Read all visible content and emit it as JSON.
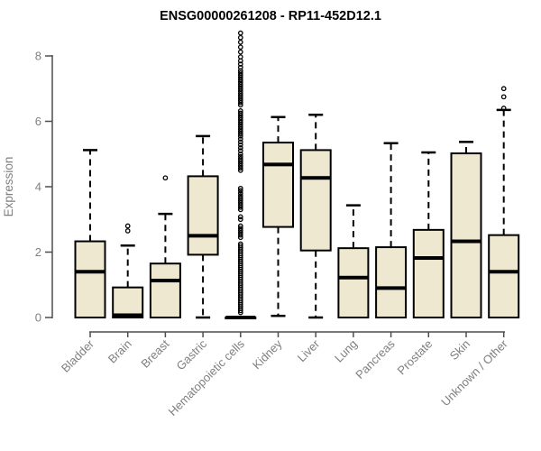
{
  "chart_data": {
    "type": "boxplot",
    "title": "ENSG00000261208 - RP11-452D12.1",
    "ylabel": "Expression",
    "xlabel": "",
    "ylim": [
      0,
      8
    ],
    "yticks": [
      0,
      2,
      4,
      6,
      8
    ],
    "grid": "off",
    "legend": "none",
    "box_fill": "#EDE8CF",
    "box_stroke": "#000000",
    "axis_color": "#4d4d4d",
    "label_color": "#7f7f7f",
    "title_color": "#000000",
    "categories": [
      "Bladder",
      "Brain",
      "Breast",
      "Gastric",
      "Hematopoietic cells",
      "Kidney",
      "Liver",
      "Lung",
      "Pancreas",
      "Prostate",
      "Skin",
      "Unknown / Other"
    ],
    "series": [
      {
        "name": "Bladder",
        "whislo": 0,
        "q1": 0,
        "med": 1.4,
        "q3": 2.33,
        "whishi": 5.12,
        "outliers": []
      },
      {
        "name": "Brain",
        "whislo": 0,
        "q1": 0,
        "med": 0.07,
        "q3": 0.92,
        "whishi": 2.2,
        "outliers": [
          2.65,
          2.8
        ]
      },
      {
        "name": "Breast",
        "whislo": 0,
        "q1": 0,
        "med": 1.13,
        "q3": 1.65,
        "whishi": 3.17,
        "outliers": [
          4.27
        ]
      },
      {
        "name": "Gastric",
        "whislo": 0,
        "q1": 1.92,
        "med": 2.5,
        "q3": 4.32,
        "whishi": 5.55,
        "outliers": []
      },
      {
        "name": "Hematopoietic cells",
        "whislo": 0,
        "q1": 0,
        "med": 0,
        "q3": 0,
        "whishi": 0,
        "outliers": [
          0.15,
          0.21,
          0.27,
          0.33,
          0.39,
          0.45,
          0.51,
          0.57,
          0.63,
          0.69,
          0.75,
          0.81,
          0.87,
          0.93,
          0.99,
          1.05,
          1.11,
          1.17,
          1.23,
          1.29,
          1.35,
          1.41,
          1.47,
          1.53,
          1.59,
          1.65,
          1.71,
          1.77,
          1.83,
          1.89,
          1.95,
          2.01,
          2.07,
          2.13,
          2.19,
          2.25,
          2.45,
          2.52,
          2.59,
          2.66,
          2.73,
          2.8,
          3.0,
          3.08,
          3.3,
          3.37,
          3.44,
          3.51,
          3.58,
          3.65,
          3.72,
          3.8,
          3.88,
          3.95,
          4.5,
          4.57,
          4.64,
          4.71,
          4.78,
          4.85,
          4.92,
          5.0,
          5.1,
          5.19,
          5.28,
          5.37,
          5.46,
          5.55,
          5.62,
          5.69,
          5.76,
          5.83,
          5.9,
          5.97,
          6.04,
          6.11,
          6.18,
          6.25,
          6.32,
          6.5,
          6.57,
          6.64,
          6.71,
          6.78,
          6.85,
          6.92,
          6.99,
          7.06,
          7.13,
          7.2,
          7.27,
          7.34,
          7.41,
          7.48,
          7.55,
          7.65,
          7.75,
          7.85,
          7.97,
          8.12,
          8.27,
          8.42,
          8.56,
          8.7
        ]
      },
      {
        "name": "Kidney",
        "whislo": 0.05,
        "q1": 2.77,
        "med": 4.68,
        "q3": 5.35,
        "whishi": 6.13,
        "outliers": []
      },
      {
        "name": "Liver",
        "whislo": 0,
        "q1": 2.05,
        "med": 4.27,
        "q3": 5.12,
        "whishi": 6.2,
        "outliers": []
      },
      {
        "name": "Lung",
        "whislo": 0,
        "q1": 0,
        "med": 1.22,
        "q3": 2.12,
        "whishi": 3.43,
        "outliers": []
      },
      {
        "name": "Pancreas",
        "whislo": 0,
        "q1": 0,
        "med": 0.9,
        "q3": 2.15,
        "whishi": 5.33,
        "outliers": []
      },
      {
        "name": "Prostate",
        "whislo": 0,
        "q1": 0,
        "med": 1.82,
        "q3": 2.68,
        "whishi": 5.05,
        "outliers": []
      },
      {
        "name": "Skin",
        "whislo": 0,
        "q1": 0,
        "med": 2.33,
        "q3": 5.02,
        "whishi": 5.37,
        "outliers": []
      },
      {
        "name": "Unknown / Other",
        "whislo": 0,
        "q1": 0,
        "med": 1.4,
        "q3": 2.52,
        "whishi": 6.35,
        "outliers": [
          6.4,
          6.75,
          7.0
        ]
      }
    ]
  }
}
